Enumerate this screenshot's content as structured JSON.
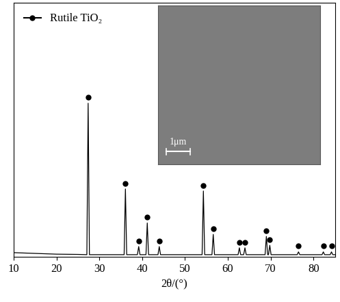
{
  "chart_data": {
    "type": "line",
    "x_label": "2θ/(°)",
    "x": [
      10,
      15,
      20,
      25,
      27.1,
      27.4,
      27.7,
      35.8,
      36.1,
      36.4,
      38.9,
      39.2,
      39.5,
      40.9,
      41.2,
      41.5,
      43.7,
      44.0,
      44.3,
      54.0,
      54.3,
      54.6,
      56.3,
      56.6,
      56.9,
      62.4,
      62.7,
      63.0,
      63.7,
      64.0,
      64.3,
      68.7,
      69.0,
      69.3,
      69.5,
      69.8,
      70.1,
      76.2,
      76.5,
      76.8,
      82.0,
      82.3,
      82.6,
      83.9,
      84.2,
      84.5,
      85
    ],
    "values": [
      1.6,
      1.3,
      1.0,
      0.9,
      0.8,
      60.5,
      0.8,
      0.8,
      26.7,
      0.8,
      0.8,
      4.0,
      0.8,
      0.8,
      13.3,
      0.8,
      0.8,
      4.0,
      0.8,
      0.8,
      25.9,
      0.8,
      0.8,
      8.8,
      0.8,
      0.8,
      3.5,
      0.8,
      0.8,
      3.5,
      0.8,
      0.8,
      8.0,
      0.8,
      0.8,
      4.5,
      0.8,
      0.8,
      1.9,
      0.8,
      0.8,
      1.9,
      0.8,
      0.8,
      1.9,
      0.8,
      0.8
    ],
    "color": "#000000",
    "series": [
      {
        "name": "Rutile TiO₂",
        "type": "scatter",
        "marker": "circle",
        "color": "#000000",
        "x": [
          27.4,
          36.1,
          39.2,
          41.2,
          44.0,
          54.3,
          56.6,
          62.7,
          64.0,
          69.0,
          69.8,
          76.5,
          82.3,
          84.2
        ],
        "values": [
          60.5,
          26.7,
          4.0,
          13.3,
          4.0,
          25.9,
          8.8,
          3.5,
          3.5,
          8.0,
          4.5,
          1.9,
          1.9,
          1.9
        ]
      }
    ],
    "xlim": [
      10,
      85
    ],
    "xticks": [
      10,
      20,
      30,
      40,
      50,
      60,
      70,
      80
    ],
    "ylim": [
      0,
      100
    ],
    "yticks": [],
    "tick_labels": "x",
    "legend": "upper left",
    "annotations": [
      {
        "text": "1μm"
      }
    ]
  }
}
